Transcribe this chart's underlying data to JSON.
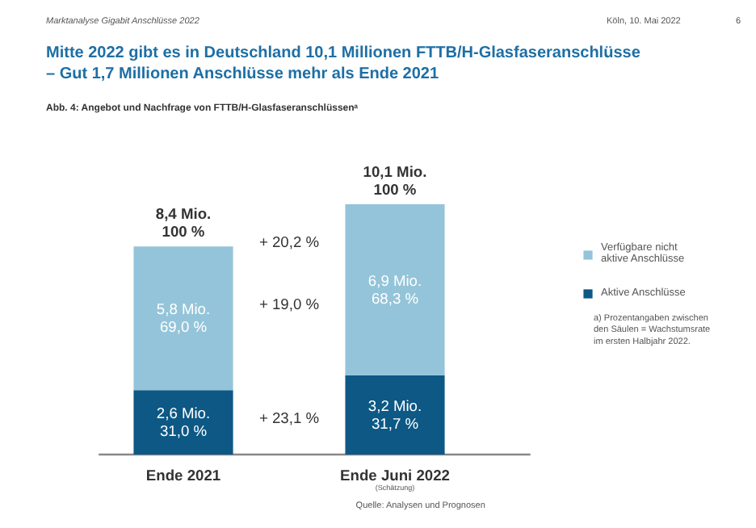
{
  "chart_data": {
    "type": "bar",
    "stacked": true,
    "title": "Mitte 2022 gibt es in Deutschland 10,1 Millionen FTTB/H-Glasfaseranschlüsse\n– Gut 1,7 Millionen Anschlüsse mehr als Ende 2021",
    "subtitle": "Abb. 4: Angebot und Nachfrage von FTTB/H-Glasfaseranschlüssenᵃ",
    "categories": [
      "Ende 2021",
      "Ende Juni 2022"
    ],
    "series": [
      {
        "name": "Aktive Anschlüsse",
        "color": "#0d5885",
        "values": [
          2.6,
          3.2
        ],
        "value_labels": [
          "2,6 Mio.\n31,0 %",
          "3,2 Mio.\n31,7 %"
        ]
      },
      {
        "name": "Verfügbare nicht\naktive Anschlüsse",
        "color": "#94c4d9",
        "values": [
          5.8,
          6.9
        ],
        "value_labels": [
          "5,8 Mio.\n69,0 %",
          "6,9 Mio.\n68,3 %"
        ]
      }
    ],
    "totals": [
      "8,4 Mio.\n100 %",
      "10,1 Mio.\n100 %"
    ],
    "annotations": [
      "+ 20,2 %",
      "+ 19,0 %",
      "+ 23,1 %",
      "(Schätzung)",
      "a) Prozentangaben zwischen\nden Säulen = Wachstumsrate\nim ersten Halbjahr 2022.",
      "Quelle: Analysen und Prognosen",
      "Marktanalyse Gigabit Anschlüsse 2022",
      "Köln, 10. Mai 2022",
      "6"
    ],
    "legend": "right",
    "grid": false
  }
}
